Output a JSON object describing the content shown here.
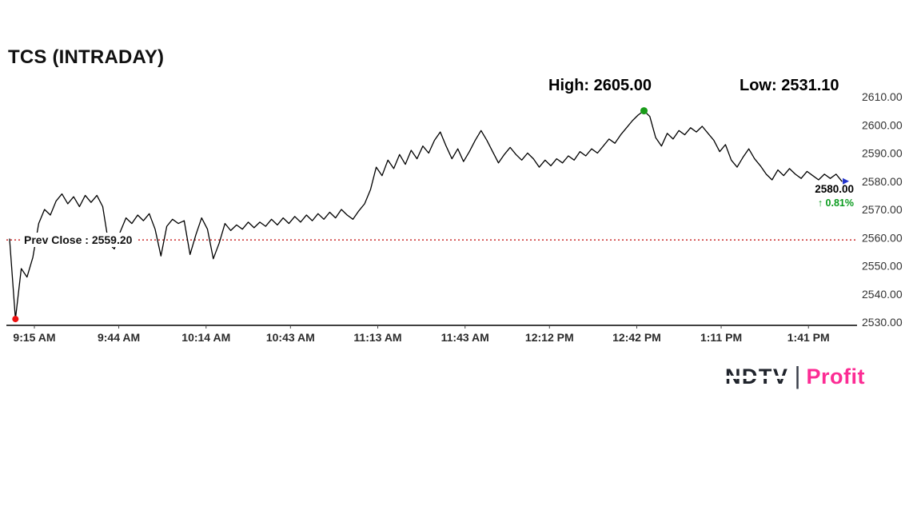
{
  "title": "TCS (INTRADAY)",
  "stats": {
    "high_label": "High: 2605.00",
    "low_label": "Low: 2531.10"
  },
  "prev_close": {
    "label": "Prev Close : 2559.20",
    "value": 2559.2
  },
  "last_quote": {
    "price_label": "2580.00",
    "change_label": "↑ 0.81%"
  },
  "logo": {
    "ndtv": "NDTV",
    "separator": "|",
    "profit": "Profit"
  },
  "colors": {
    "line": "#000000",
    "prev_close_line": "#c00000",
    "low_marker": "#ee1111",
    "high_marker": "#1a9c1a",
    "last_marker": "#2233cc",
    "change_text": "#0a9b1e",
    "profit_pink": "#fc2c94",
    "axis_text": "#2b2b2b"
  },
  "chart_data": {
    "type": "line",
    "title": "TCS (INTRADAY)",
    "x_start_label": "9:15 AM",
    "interval_minutes": 2,
    "x_tick_labels": [
      "9:15 AM",
      "9:44 AM",
      "10:14 AM",
      "10:43 AM",
      "11:13 AM",
      "11:43 AM",
      "12:12 PM",
      "12:42 PM",
      "1:11 PM",
      "1:41 PM"
    ],
    "x_tick_minutes": [
      0,
      29,
      59,
      88,
      118,
      148,
      177,
      207,
      236,
      266
    ],
    "y_tick_labels": [
      "2610.00",
      "2600.00",
      "2590.00",
      "2580.00",
      "2570.00",
      "2560.00",
      "2550.00",
      "2540.00",
      "2530.00"
    ],
    "y_tick_values": [
      2610,
      2600,
      2590,
      2580,
      2570,
      2560,
      2550,
      2540,
      2530
    ],
    "ylim": [
      2530,
      2610
    ],
    "x_range_minutes": [
      0,
      286
    ],
    "grid": false,
    "legend": "none",
    "prev_close": 2559.2,
    "high": {
      "value": 2605.0,
      "index": 109
    },
    "low": {
      "value": 2531.1,
      "index": 1
    },
    "last": 2580.0,
    "prices": [
      2559.5,
      2531.1,
      2549,
      2546,
      2553,
      2565,
      2570,
      2568,
      2573,
      2575.5,
      2572,
      2574.5,
      2571,
      2575,
      2572.5,
      2575,
      2571,
      2558,
      2556,
      2562,
      2567,
      2565,
      2568,
      2566,
      2568.5,
      2563,
      2553.5,
      2564,
      2566.5,
      2565,
      2566,
      2554,
      2561,
      2567,
      2563,
      2552.5,
      2558,
      2565,
      2562.5,
      2564.5,
      2563,
      2565.5,
      2563.5,
      2565.5,
      2564,
      2566.5,
      2564.5,
      2567,
      2565,
      2567.5,
      2565.5,
      2568,
      2566,
      2568.5,
      2566.5,
      2569,
      2567,
      2570,
      2568,
      2566.5,
      2569.5,
      2572,
      2577,
      2585,
      2582,
      2587.5,
      2584.5,
      2589.5,
      2586,
      2591,
      2588,
      2592.5,
      2590,
      2594.5,
      2597.5,
      2592.5,
      2588,
      2591.5,
      2587,
      2590.5,
      2594.5,
      2598,
      2594.5,
      2590.5,
      2586.5,
      2589.5,
      2592,
      2589.5,
      2587.5,
      2590,
      2588,
      2585,
      2587.5,
      2585.5,
      2588,
      2586.5,
      2589,
      2587.5,
      2590.5,
      2589,
      2591.5,
      2590,
      2592.5,
      2595,
      2593.5,
      2596.5,
      2599,
      2601.5,
      2603.5,
      2605.0,
      2603,
      2595.5,
      2592.5,
      2597,
      2595,
      2598,
      2596.5,
      2599,
      2597.5,
      2599.5,
      2597,
      2594.5,
      2590.5,
      2593,
      2587.5,
      2585,
      2588.5,
      2591.5,
      2588,
      2585.5,
      2582.5,
      2580.5,
      2584,
      2582,
      2584.5,
      2582.5,
      2581,
      2583.5,
      2582,
      2580.5,
      2582.5,
      2581,
      2582.5,
      2580.0
    ]
  }
}
